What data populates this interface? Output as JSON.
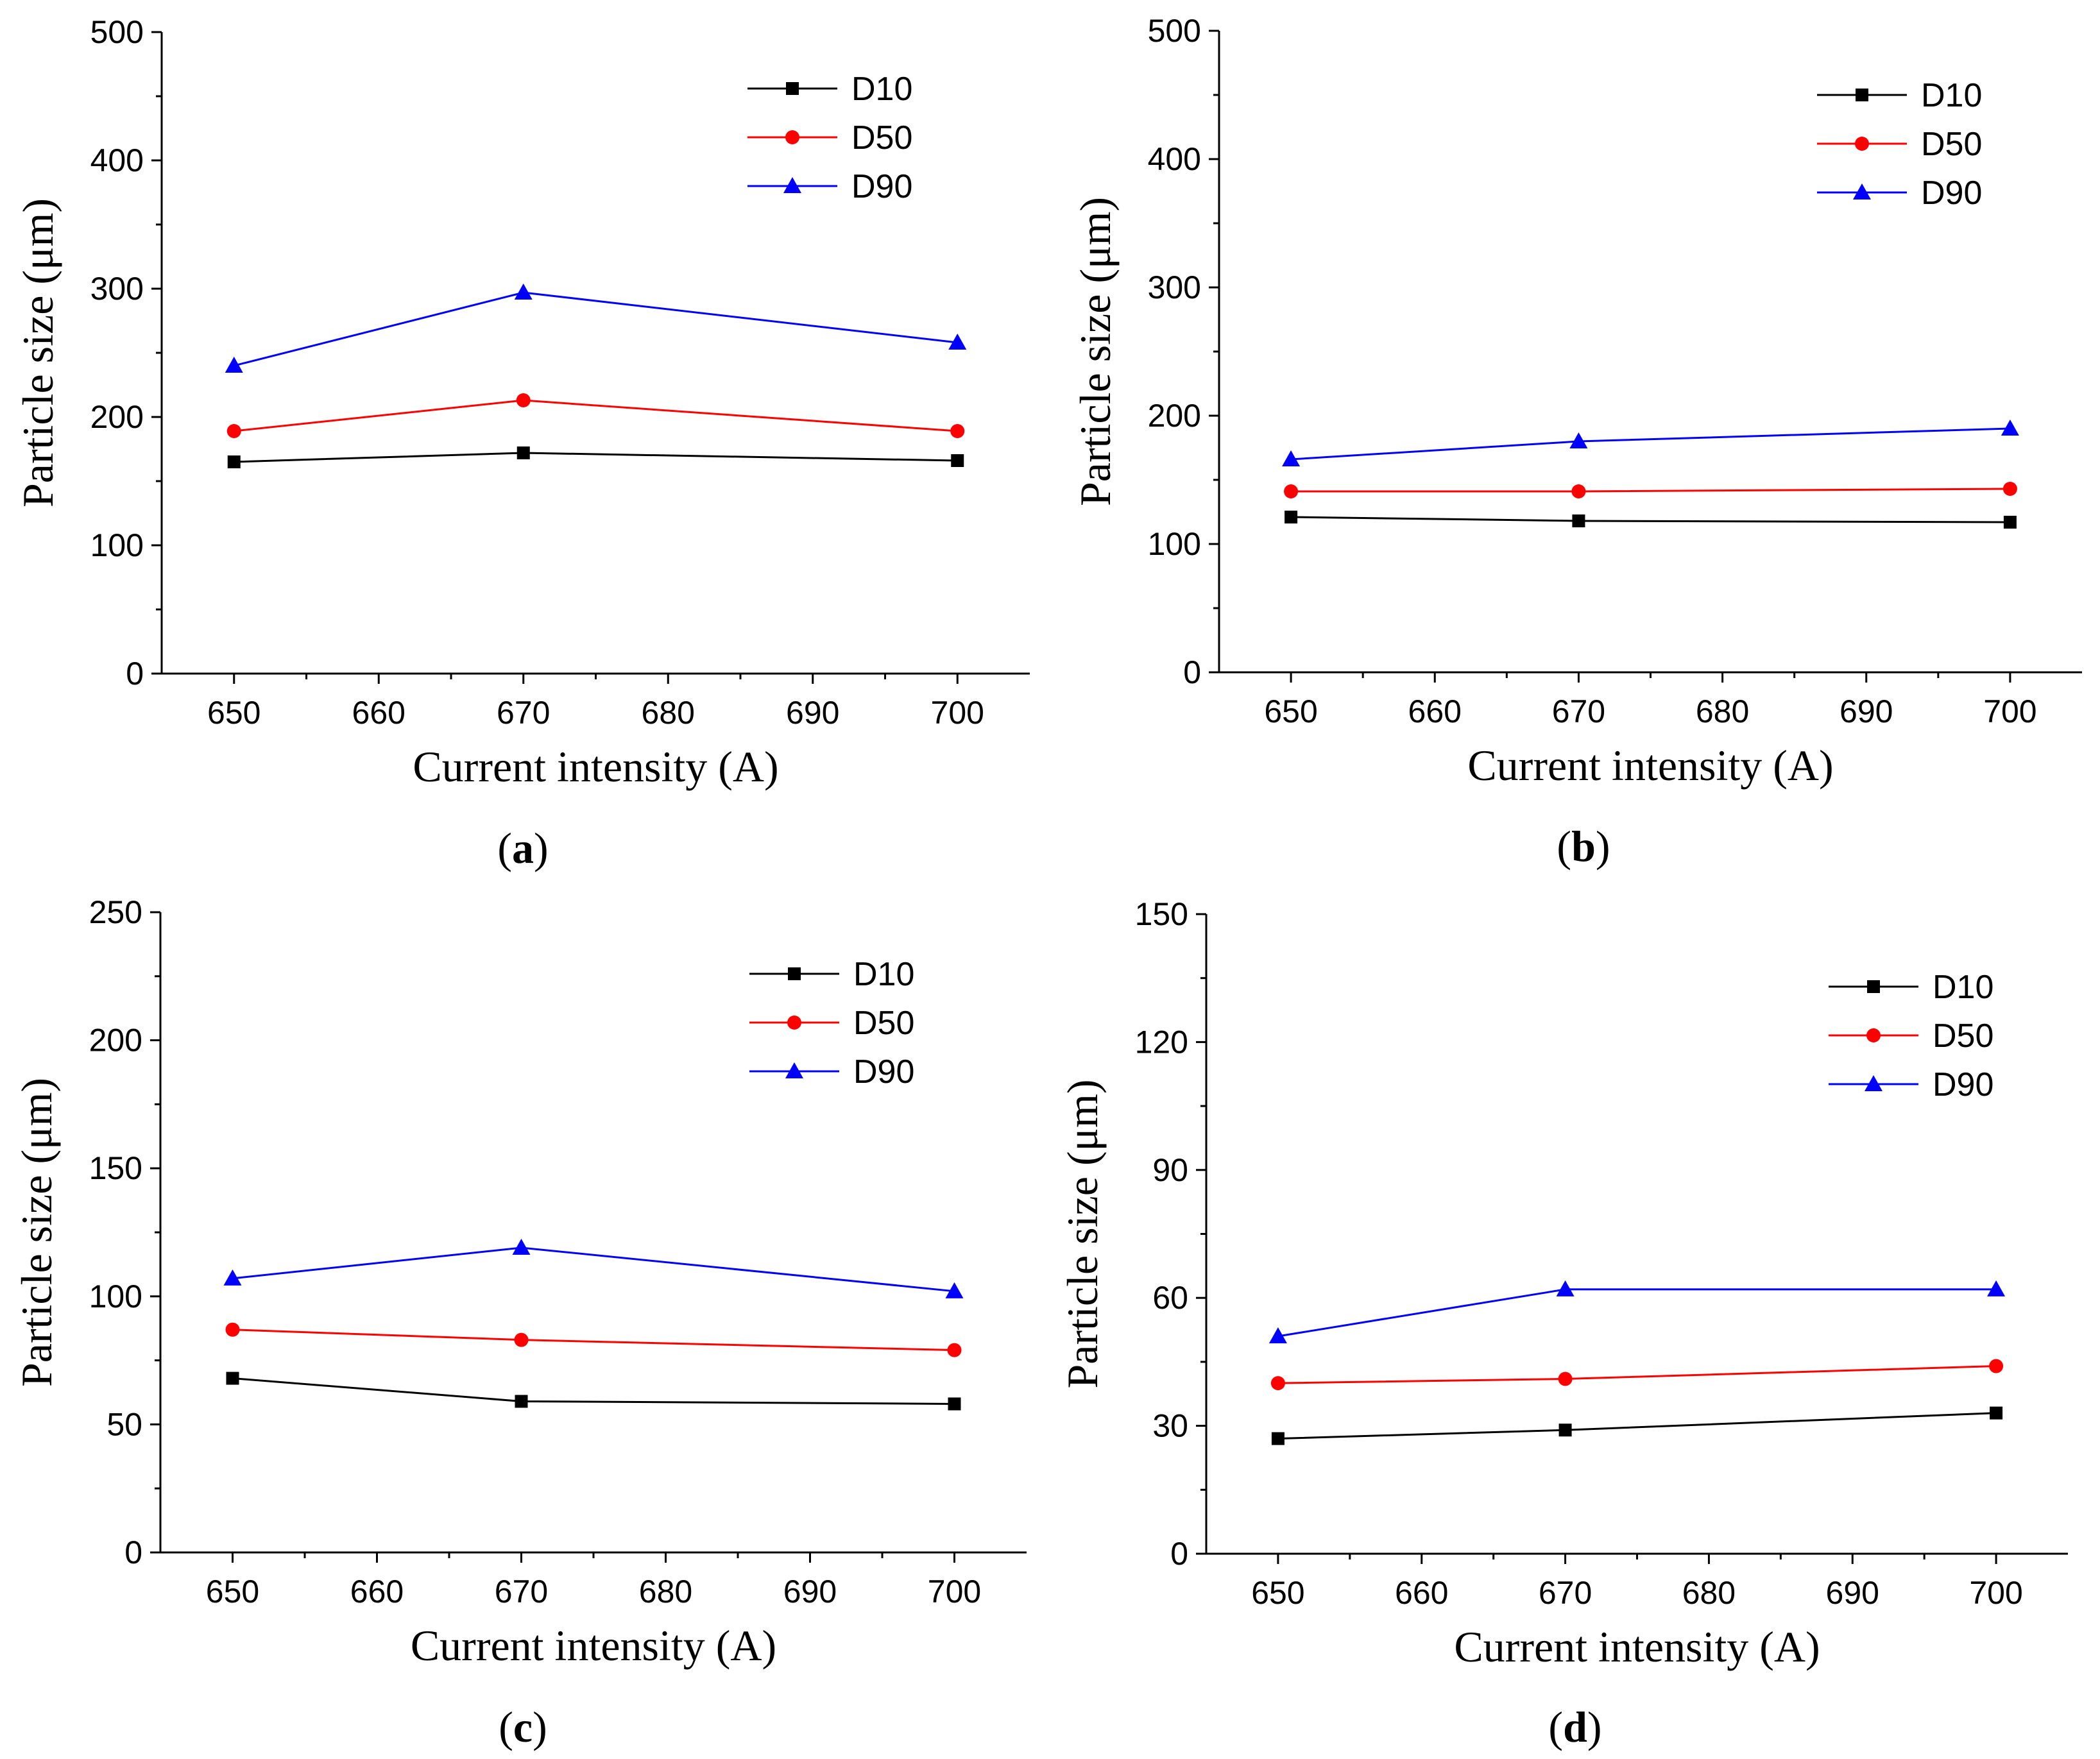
{
  "chart_data": [
    {
      "type": "line",
      "panel_label": "a",
      "xlabel": "Current intensity (A)",
      "ylabel": "Particle size (μm)",
      "xlim": [
        645,
        705
      ],
      "ylim": [
        0,
        500
      ],
      "xticks": [
        650,
        660,
        670,
        680,
        690,
        700
      ],
      "yticks": [
        0,
        100,
        200,
        300,
        400,
        500
      ],
      "legend_position": "top-right",
      "x": [
        650,
        670,
        700
      ],
      "series": [
        {
          "name": "D10",
          "color": "#000000",
          "marker": "square",
          "values": [
            165,
            172,
            166
          ]
        },
        {
          "name": "D50",
          "color": "#ff0000",
          "marker": "circle",
          "values": [
            189,
            213,
            189
          ]
        },
        {
          "name": "D90",
          "color": "#0000ff",
          "marker": "triangle",
          "values": [
            240,
            297,
            258
          ]
        }
      ]
    },
    {
      "type": "line",
      "panel_label": "b",
      "xlabel": "Current intensity (A)",
      "ylabel": "Particle size (μm)",
      "xlim": [
        645,
        705
      ],
      "ylim": [
        0,
        500
      ],
      "xticks": [
        650,
        660,
        670,
        680,
        690,
        700
      ],
      "yticks": [
        0,
        100,
        200,
        300,
        400,
        500
      ],
      "legend_position": "top-right",
      "x": [
        650,
        670,
        700
      ],
      "series": [
        {
          "name": "D10",
          "color": "#000000",
          "marker": "square",
          "values": [
            121,
            118,
            117
          ]
        },
        {
          "name": "D50",
          "color": "#ff0000",
          "marker": "circle",
          "values": [
            141,
            141,
            143
          ]
        },
        {
          "name": "D90",
          "color": "#0000ff",
          "marker": "triangle",
          "values": [
            166,
            180,
            190
          ]
        }
      ]
    },
    {
      "type": "line",
      "panel_label": "c",
      "xlabel": "Current intensity (A)",
      "ylabel": "Particle size (μm)",
      "xlim": [
        645,
        705
      ],
      "ylim": [
        0,
        250
      ],
      "xticks": [
        650,
        660,
        670,
        680,
        690,
        700
      ],
      "yticks": [
        0,
        50,
        100,
        150,
        200,
        250
      ],
      "legend_position": "top-right",
      "x": [
        650,
        670,
        700
      ],
      "series": [
        {
          "name": "D10",
          "color": "#000000",
          "marker": "square",
          "values": [
            68,
            59,
            58
          ]
        },
        {
          "name": "D50",
          "color": "#ff0000",
          "marker": "circle",
          "values": [
            87,
            83,
            79
          ]
        },
        {
          "name": "D90",
          "color": "#0000ff",
          "marker": "triangle",
          "values": [
            107,
            119,
            102
          ]
        }
      ]
    },
    {
      "type": "line",
      "panel_label": "d",
      "xlabel": "Current intensity (A)",
      "ylabel": "Particle size (μm)",
      "xlim": [
        645,
        705
      ],
      "ylim": [
        0,
        150
      ],
      "xticks": [
        650,
        660,
        670,
        680,
        690,
        700
      ],
      "yticks": [
        0,
        30,
        60,
        90,
        120,
        150
      ],
      "legend_position": "top-right",
      "x": [
        650,
        670,
        700
      ],
      "series": [
        {
          "name": "D10",
          "color": "#000000",
          "marker": "square",
          "values": [
            27,
            29,
            33
          ]
        },
        {
          "name": "D50",
          "color": "#ff0000",
          "marker": "circle",
          "values": [
            40,
            41,
            44
          ]
        },
        {
          "name": "D90",
          "color": "#0000ff",
          "marker": "triangle",
          "values": [
            51,
            62,
            62
          ]
        }
      ]
    }
  ]
}
